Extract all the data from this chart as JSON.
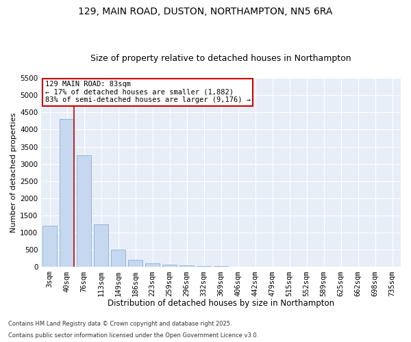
{
  "title1": "129, MAIN ROAD, DUSTON, NORTHAMPTON, NN5 6RA",
  "title2": "Size of property relative to detached houses in Northampton",
  "xlabel": "Distribution of detached houses by size in Northampton",
  "ylabel": "Number of detached properties",
  "categories": [
    "3sqm",
    "40sqm",
    "76sqm",
    "113sqm",
    "149sqm",
    "186sqm",
    "223sqm",
    "259sqm",
    "296sqm",
    "332sqm",
    "369sqm",
    "406sqm",
    "442sqm",
    "479sqm",
    "515sqm",
    "552sqm",
    "589sqm",
    "625sqm",
    "662sqm",
    "698sqm",
    "735sqm"
  ],
  "values": [
    1200,
    4300,
    3250,
    1250,
    500,
    200,
    100,
    75,
    50,
    30,
    20,
    15,
    10,
    5,
    5,
    3,
    2,
    2,
    1,
    1,
    0
  ],
  "bar_color": "#c5d8f0",
  "bar_edge_color": "#8aaed4",
  "vline_color": "#cc0000",
  "annotation_text": "129 MAIN ROAD: 83sqm\n← 17% of detached houses are smaller (1,882)\n83% of semi-detached houses are larger (9,176) →",
  "annotation_box_facecolor": "#ffffff",
  "annotation_box_edgecolor": "#cc0000",
  "ylim_max": 5500,
  "yticks": [
    0,
    500,
    1000,
    1500,
    2000,
    2500,
    3000,
    3500,
    4000,
    4500,
    5000,
    5500
  ],
  "bg_color": "#e8eef8",
  "footer1": "Contains HM Land Registry data © Crown copyright and database right 2025.",
  "footer2": "Contains public sector information licensed under the Open Government Licence v3.0.",
  "title1_fontsize": 10,
  "title2_fontsize": 9,
  "xlabel_fontsize": 8.5,
  "ylabel_fontsize": 8,
  "tick_fontsize": 7.5,
  "annot_fontsize": 7.5,
  "footer_fontsize": 6
}
